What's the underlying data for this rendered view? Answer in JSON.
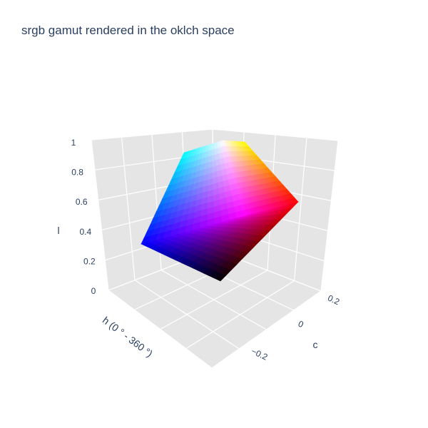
{
  "chart_data": {
    "type": "surface3d",
    "title": "srgb gamut rendered in the oklch space",
    "axes": {
      "x": {
        "label": "h (0 ° - 360 °)",
        "ticks": []
      },
      "y": {
        "label": "c",
        "ticks": [
          "−0.2",
          "0",
          "0.2"
        ],
        "range": [
          -0.32,
          0.32
        ]
      },
      "z": {
        "label": "l",
        "ticks": [
          "0",
          "0.2",
          "0.4",
          "0.6",
          "0.8",
          "1"
        ],
        "range": [
          0,
          1
        ]
      }
    },
    "grid": true,
    "background": "#e5e5e5",
    "gamut_vertices": {
      "black": {
        "l": 0.0,
        "rgb": [
          0,
          0,
          0
        ]
      },
      "blue": {
        "l": 0.452,
        "rgb": [
          0,
          0,
          255
        ]
      },
      "magenta": {
        "l": 0.702,
        "rgb": [
          255,
          0,
          255
        ]
      },
      "red": {
        "l": 0.628,
        "rgb": [
          255,
          0,
          0
        ]
      },
      "cyan": {
        "l": 0.905,
        "rgb": [
          0,
          255,
          255
        ]
      },
      "white": {
        "l": 1.0,
        "rgb": [
          255,
          255,
          255
        ]
      },
      "yellow": {
        "l": 0.968,
        "rgb": [
          255,
          255,
          0
        ]
      }
    }
  }
}
